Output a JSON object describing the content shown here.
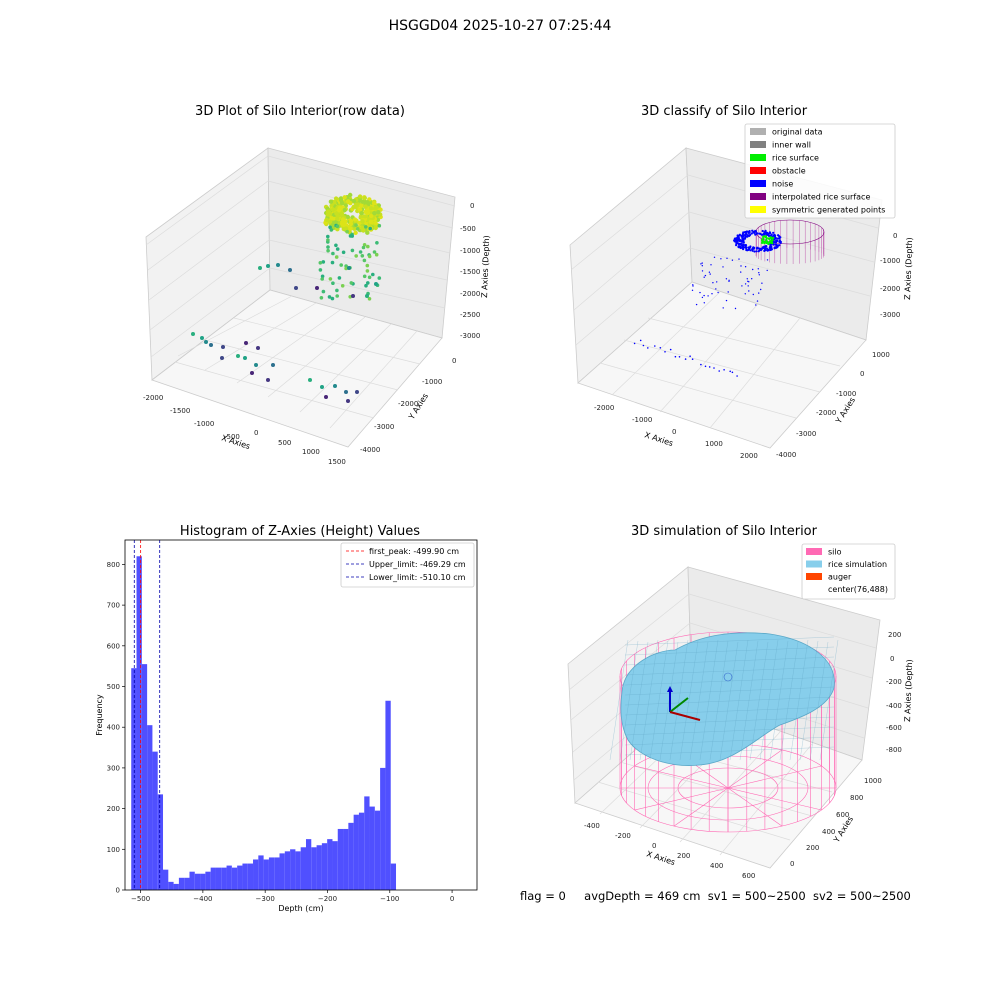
{
  "figure": {
    "title": "HSGGD04 2025-10-27 07:25:44",
    "footer": {
      "flag": "flag = 0",
      "avg": "avgDepth = 469 cm",
      "sv1": "sv1 = 500~2500",
      "sv2": "sv2 = 500~2500"
    }
  },
  "chart_data": [
    {
      "type": "scatter",
      "title": "3D Plot of Silo Interior(row data)",
      "xlabel": "X Axies",
      "ylabel": "Y Axies",
      "zlabel": "Z Axies (Depth)",
      "x_ticks": [
        "-2000",
        "-1500",
        "-1000",
        "-500",
        "0",
        "500",
        "1000",
        "1500"
      ],
      "y_ticks": [
        "0",
        "-1000",
        "-2000",
        "-3000",
        "-4000"
      ],
      "z_ticks": [
        "0",
        "-500",
        "-1000",
        "-1500",
        "-2000",
        "-2500",
        "-3000"
      ],
      "colormap": "viridis"
    },
    {
      "type": "scatter",
      "title": "3D classify of Silo Interior",
      "xlabel": "X Axies",
      "ylabel": "Y Axies",
      "zlabel": "Z Axies (Depth)",
      "x_ticks": [
        "-2000",
        "-1000",
        "0",
        "1000",
        "2000"
      ],
      "y_ticks": [
        "1000",
        "0",
        "-1000",
        "-2000",
        "-3000",
        "-4000"
      ],
      "z_ticks": [
        "0",
        "-1000",
        "-2000",
        "-3000"
      ],
      "legend_position": "top-right",
      "legend": [
        {
          "label": "original data",
          "color": "#b0b0b0"
        },
        {
          "label": "inner wall",
          "color": "#808080"
        },
        {
          "label": "rice surface",
          "color": "#00ee00"
        },
        {
          "label": "obstacle",
          "color": "#ff0000"
        },
        {
          "label": "noise",
          "color": "#0000ff"
        },
        {
          "label": "interpolated rice surface",
          "color": "#800080"
        },
        {
          "label": "symmetric generated points",
          "color": "#ffff00"
        }
      ]
    },
    {
      "type": "bar",
      "title": "Histogram of Z-Axies (Height) Values",
      "xlabel": "Depth (cm)",
      "ylabel": "Frequency",
      "xlim": [
        -525,
        40
      ],
      "ylim": [
        0,
        860
      ],
      "x_ticks": [
        -500,
        -400,
        -300,
        -200,
        -100,
        0
      ],
      "y_ticks": [
        0,
        100,
        200,
        300,
        400,
        500,
        600,
        700,
        800
      ],
      "bin_start": -515,
      "bin_width": 8.5,
      "color": "#5050ff",
      "values": [
        545,
        820,
        555,
        405,
        340,
        235,
        50,
        20,
        15,
        30,
        30,
        45,
        40,
        40,
        45,
        55,
        55,
        55,
        60,
        55,
        60,
        65,
        65,
        75,
        85,
        75,
        80,
        80,
        90,
        95,
        100,
        95,
        105,
        125,
        105,
        110,
        115,
        125,
        120,
        150,
        150,
        165,
        185,
        190,
        230,
        205,
        195,
        300,
        465,
        65
      ],
      "vlines": [
        {
          "label": "first_peak: -499.90 cm",
          "x": -499.9,
          "color": "#ff0000"
        },
        {
          "label": "Upper_limit: -469.29 cm",
          "x": -469.29,
          "color": "#0000aa"
        },
        {
          "label": "Lower_limit: -510.10 cm",
          "x": -510.1,
          "color": "#0000aa"
        }
      ],
      "legend_position": "top-right"
    },
    {
      "type": "scatter",
      "title": "3D simulation of Silo Interior",
      "xlabel": "X Axies",
      "ylabel": "Y Axies",
      "zlabel": "Z Axies (Depth)",
      "x_ticks": [
        "-400",
        "-200",
        "0",
        "200",
        "400",
        "600"
      ],
      "y_ticks": [
        "0",
        "200",
        "400",
        "600",
        "800",
        "1000"
      ],
      "z_ticks": [
        "200",
        "0",
        "-200",
        "-400",
        "-600",
        "-800"
      ],
      "legend_position": "top-right",
      "legend": [
        {
          "label": "silo",
          "color": "#ff69b4"
        },
        {
          "label": "rice simulation",
          "color": "#87ceeb"
        },
        {
          "label": "auger",
          "color": "#ff4500"
        },
        {
          "label": "center(76,488)",
          "color": ""
        }
      ]
    }
  ]
}
